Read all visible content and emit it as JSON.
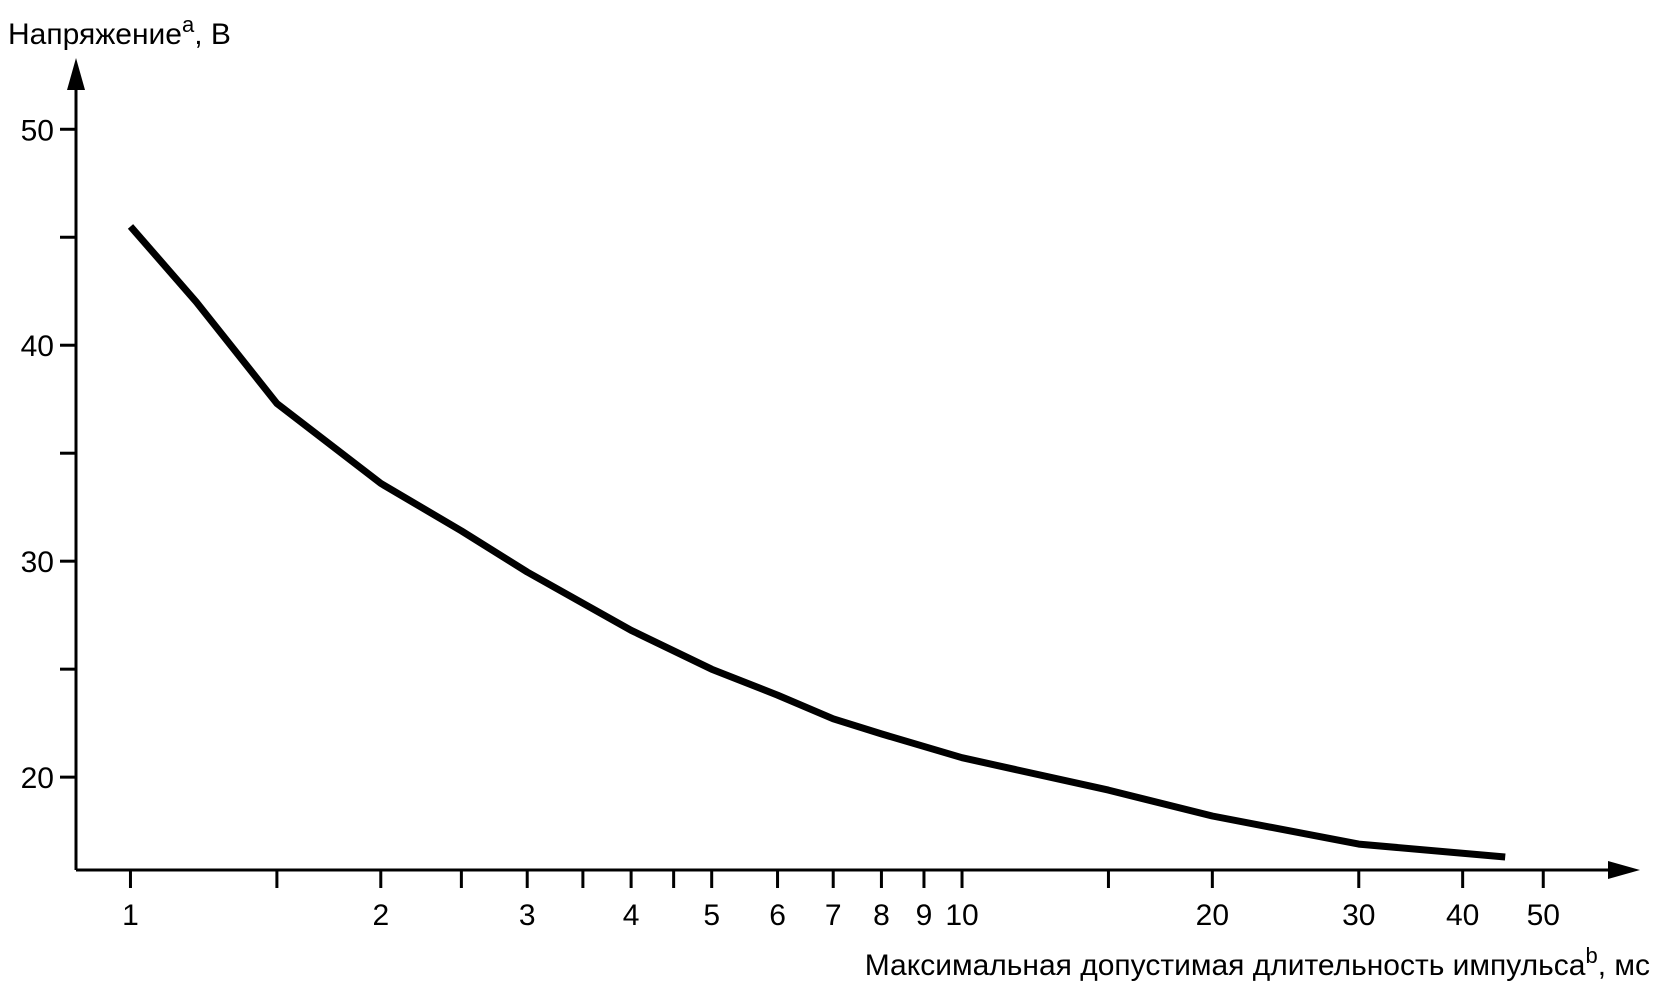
{
  "chart_data": {
    "type": "line",
    "y_label": {
      "text": "Напряжение",
      "note": "a",
      "unit": ", В"
    },
    "x_label": {
      "text": "Максимальная допустимая длительность импульса",
      "note": "b",
      "unit": ", мс"
    },
    "xscale": "log",
    "xlim": [
      0.86,
      65
    ],
    "xticks": [
      1,
      2,
      3,
      4,
      5,
      6,
      7,
      8,
      9,
      10,
      20,
      30,
      40,
      50
    ],
    "xminorticks": [
      1.5,
      2.5,
      3.5,
      4.5,
      15
    ],
    "ylim": [
      15.7,
      53.3
    ],
    "yticks": [
      20,
      30,
      40,
      50
    ],
    "yminorticks": [
      25,
      35,
      45
    ],
    "grid": false,
    "series": [
      {
        "name": "Напряжение",
        "color": "#000000",
        "x": [
          1,
          1.2,
          1.5,
          2,
          2.5,
          3,
          4,
          5,
          6,
          7,
          8,
          10,
          15,
          20,
          30,
          45
        ],
        "values": [
          45.5,
          42.0,
          37.3,
          33.6,
          31.4,
          29.5,
          26.8,
          25.0,
          23.8,
          22.7,
          22.0,
          20.9,
          19.4,
          18.2,
          16.9,
          16.3
        ]
      }
    ]
  }
}
